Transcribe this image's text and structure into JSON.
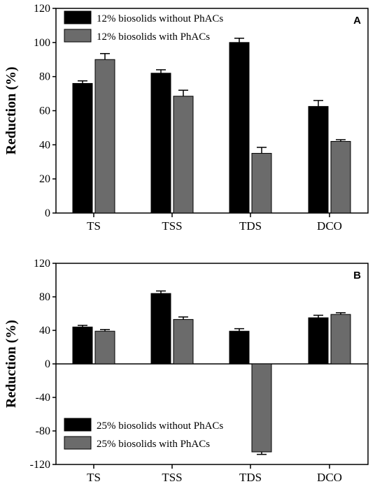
{
  "chart_data": [
    {
      "type": "bar",
      "panel": "A",
      "categories": [
        "TS",
        "TSS",
        "TDS",
        "DCO"
      ],
      "ylabel": "Reduction (%)",
      "ylim": [
        0,
        120
      ],
      "yticks": [
        0,
        20,
        40,
        60,
        80,
        100,
        120
      ],
      "legend_position": "top-left",
      "series": [
        {
          "name": "12% biosolids without PhACs",
          "color": "#000000",
          "values": [
            76,
            82,
            100,
            62.5
          ],
          "errors": [
            1.5,
            2,
            2.5,
            3.5
          ]
        },
        {
          "name": "12% biosolids with PhACs",
          "color": "#6b6b6b",
          "values": [
            90,
            68.5,
            35,
            42
          ],
          "errors": [
            3.5,
            3.5,
            3.5,
            1
          ]
        }
      ]
    },
    {
      "type": "bar",
      "panel": "B",
      "categories": [
        "TS",
        "TSS",
        "TDS",
        "DCO"
      ],
      "ylabel": "Reduction (%)",
      "ylim": [
        -120,
        120
      ],
      "yticks": [
        -120,
        -80,
        -40,
        0,
        40,
        80,
        120
      ],
      "legend_position": "bottom-left",
      "series": [
        {
          "name": "25% biosolids without PhACs",
          "color": "#000000",
          "values": [
            44,
            84,
            39,
            55
          ],
          "errors": [
            2,
            3,
            3,
            3
          ]
        },
        {
          "name": "25% biosolids with PhACs",
          "color": "#6b6b6b",
          "values": [
            39,
            53,
            -105,
            59
          ],
          "errors": [
            2,
            3,
            3,
            2
          ]
        }
      ]
    }
  ]
}
